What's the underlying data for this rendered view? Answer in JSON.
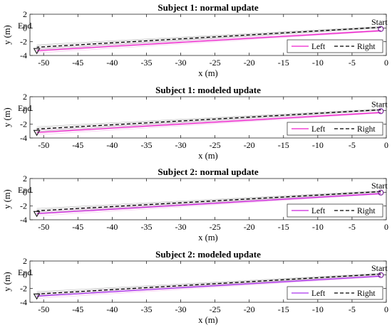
{
  "chart_data": [
    {
      "type": "line",
      "title": "Subject 1: normal update",
      "xlabel": "x (m)",
      "ylabel": "y (m)",
      "xlim": [
        -52,
        0
      ],
      "ylim": [
        -4,
        2
      ],
      "xticks": [
        "-50",
        "-45",
        "-40",
        "-35",
        "-30",
        "-25",
        "-20",
        "-15",
        "-10",
        "-5",
        "0"
      ],
      "yticks": [
        "2",
        "0",
        "-2",
        "-4"
      ],
      "start_label": "Start",
      "end_label": "End",
      "legend": {
        "position": "bottom-right",
        "entries": [
          "Left",
          "Right"
        ]
      },
      "series": [
        {
          "name": "Left",
          "style": "solid",
          "color": "#ee22cc",
          "x": [
            -0.8,
            -51
          ],
          "y": [
            -0.4,
            -3.3
          ]
        },
        {
          "name": "Right",
          "style": "dashed",
          "color": "#000000",
          "x": [
            -0.8,
            -51
          ],
          "y": [
            0.1,
            -2.8
          ]
        }
      ]
    },
    {
      "type": "line",
      "title": "Subject 1: modeled update",
      "xlabel": "x (m)",
      "ylabel": "y (m)",
      "xlim": [
        -52,
        0
      ],
      "ylim": [
        -4,
        2
      ],
      "xticks": [
        "-50",
        "-45",
        "-40",
        "-35",
        "-30",
        "-25",
        "-20",
        "-15",
        "-10",
        "-5",
        "0"
      ],
      "yticks": [
        "2",
        "0",
        "-2",
        "-4"
      ],
      "start_label": "Start",
      "end_label": "End",
      "legend": {
        "position": "bottom-right",
        "entries": [
          "Left",
          "Right"
        ]
      },
      "series": [
        {
          "name": "Left",
          "style": "solid",
          "color": "#ee22cc",
          "x": [
            -0.8,
            -51
          ],
          "y": [
            -0.3,
            -3.2
          ]
        },
        {
          "name": "Right",
          "style": "dashed",
          "color": "#000000",
          "x": [
            -0.8,
            -51
          ],
          "y": [
            0.1,
            -2.7
          ]
        }
      ]
    },
    {
      "type": "line",
      "title": "Subject 2: normal update",
      "xlabel": "x (m)",
      "ylabel": "y (m)",
      "xlim": [
        -52,
        0
      ],
      "ylim": [
        -4,
        2
      ],
      "xticks": [
        "-50",
        "-45",
        "-40",
        "-35",
        "-30",
        "-25",
        "-20",
        "-15",
        "-10",
        "-5",
        "0"
      ],
      "yticks": [
        "2",
        "0",
        "-2",
        "-4"
      ],
      "start_label": "Start",
      "end_label": "End",
      "legend": {
        "position": "bottom-right",
        "entries": [
          "Left",
          "Right"
        ]
      },
      "series": [
        {
          "name": "Left",
          "style": "solid",
          "color": "#cc22dd",
          "x": [
            -0.8,
            -51
          ],
          "y": [
            -0.2,
            -3.1
          ]
        },
        {
          "name": "Right",
          "style": "dashed",
          "color": "#000000",
          "x": [
            -0.8,
            -51
          ],
          "y": [
            0.1,
            -2.7
          ]
        }
      ]
    },
    {
      "type": "line",
      "title": "Subject 2: modeled update",
      "xlabel": "x (m)",
      "ylabel": "y (m)",
      "xlim": [
        -52,
        0
      ],
      "ylim": [
        -4,
        2
      ],
      "xticks": [
        "-50",
        "-45",
        "-40",
        "-35",
        "-30",
        "-25",
        "-20",
        "-15",
        "-10",
        "-5",
        "0"
      ],
      "yticks": [
        "2",
        "0",
        "-2",
        "-4"
      ],
      "start_label": "Start",
      "end_label": "End",
      "legend": {
        "position": "bottom-right",
        "entries": [
          "Left",
          "Right"
        ]
      },
      "series": [
        {
          "name": "Left",
          "style": "solid",
          "color": "#aa33ee",
          "x": [
            -0.8,
            -51
          ],
          "y": [
            -0.2,
            -3.1
          ]
        },
        {
          "name": "Right",
          "style": "dashed",
          "color": "#000000",
          "x": [
            -0.8,
            -51
          ],
          "y": [
            0.1,
            -2.8
          ]
        }
      ]
    }
  ]
}
